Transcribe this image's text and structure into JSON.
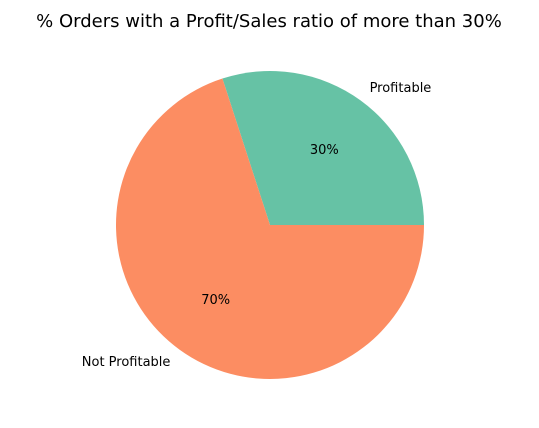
{
  "chart_data": {
    "type": "pie",
    "title": "% Orders with a Profit/Sales ratio of more than 30%",
    "slices": [
      {
        "label": "Profitable",
        "value": 30,
        "pct_label": "30%",
        "color": "#66c2a5"
      },
      {
        "label": "Not Profitable",
        "value": 70,
        "pct_label": "70%",
        "color": "#fc8d62"
      }
    ],
    "start_angle_deg": 0,
    "direction": "counterclockwise",
    "legend": "none"
  }
}
